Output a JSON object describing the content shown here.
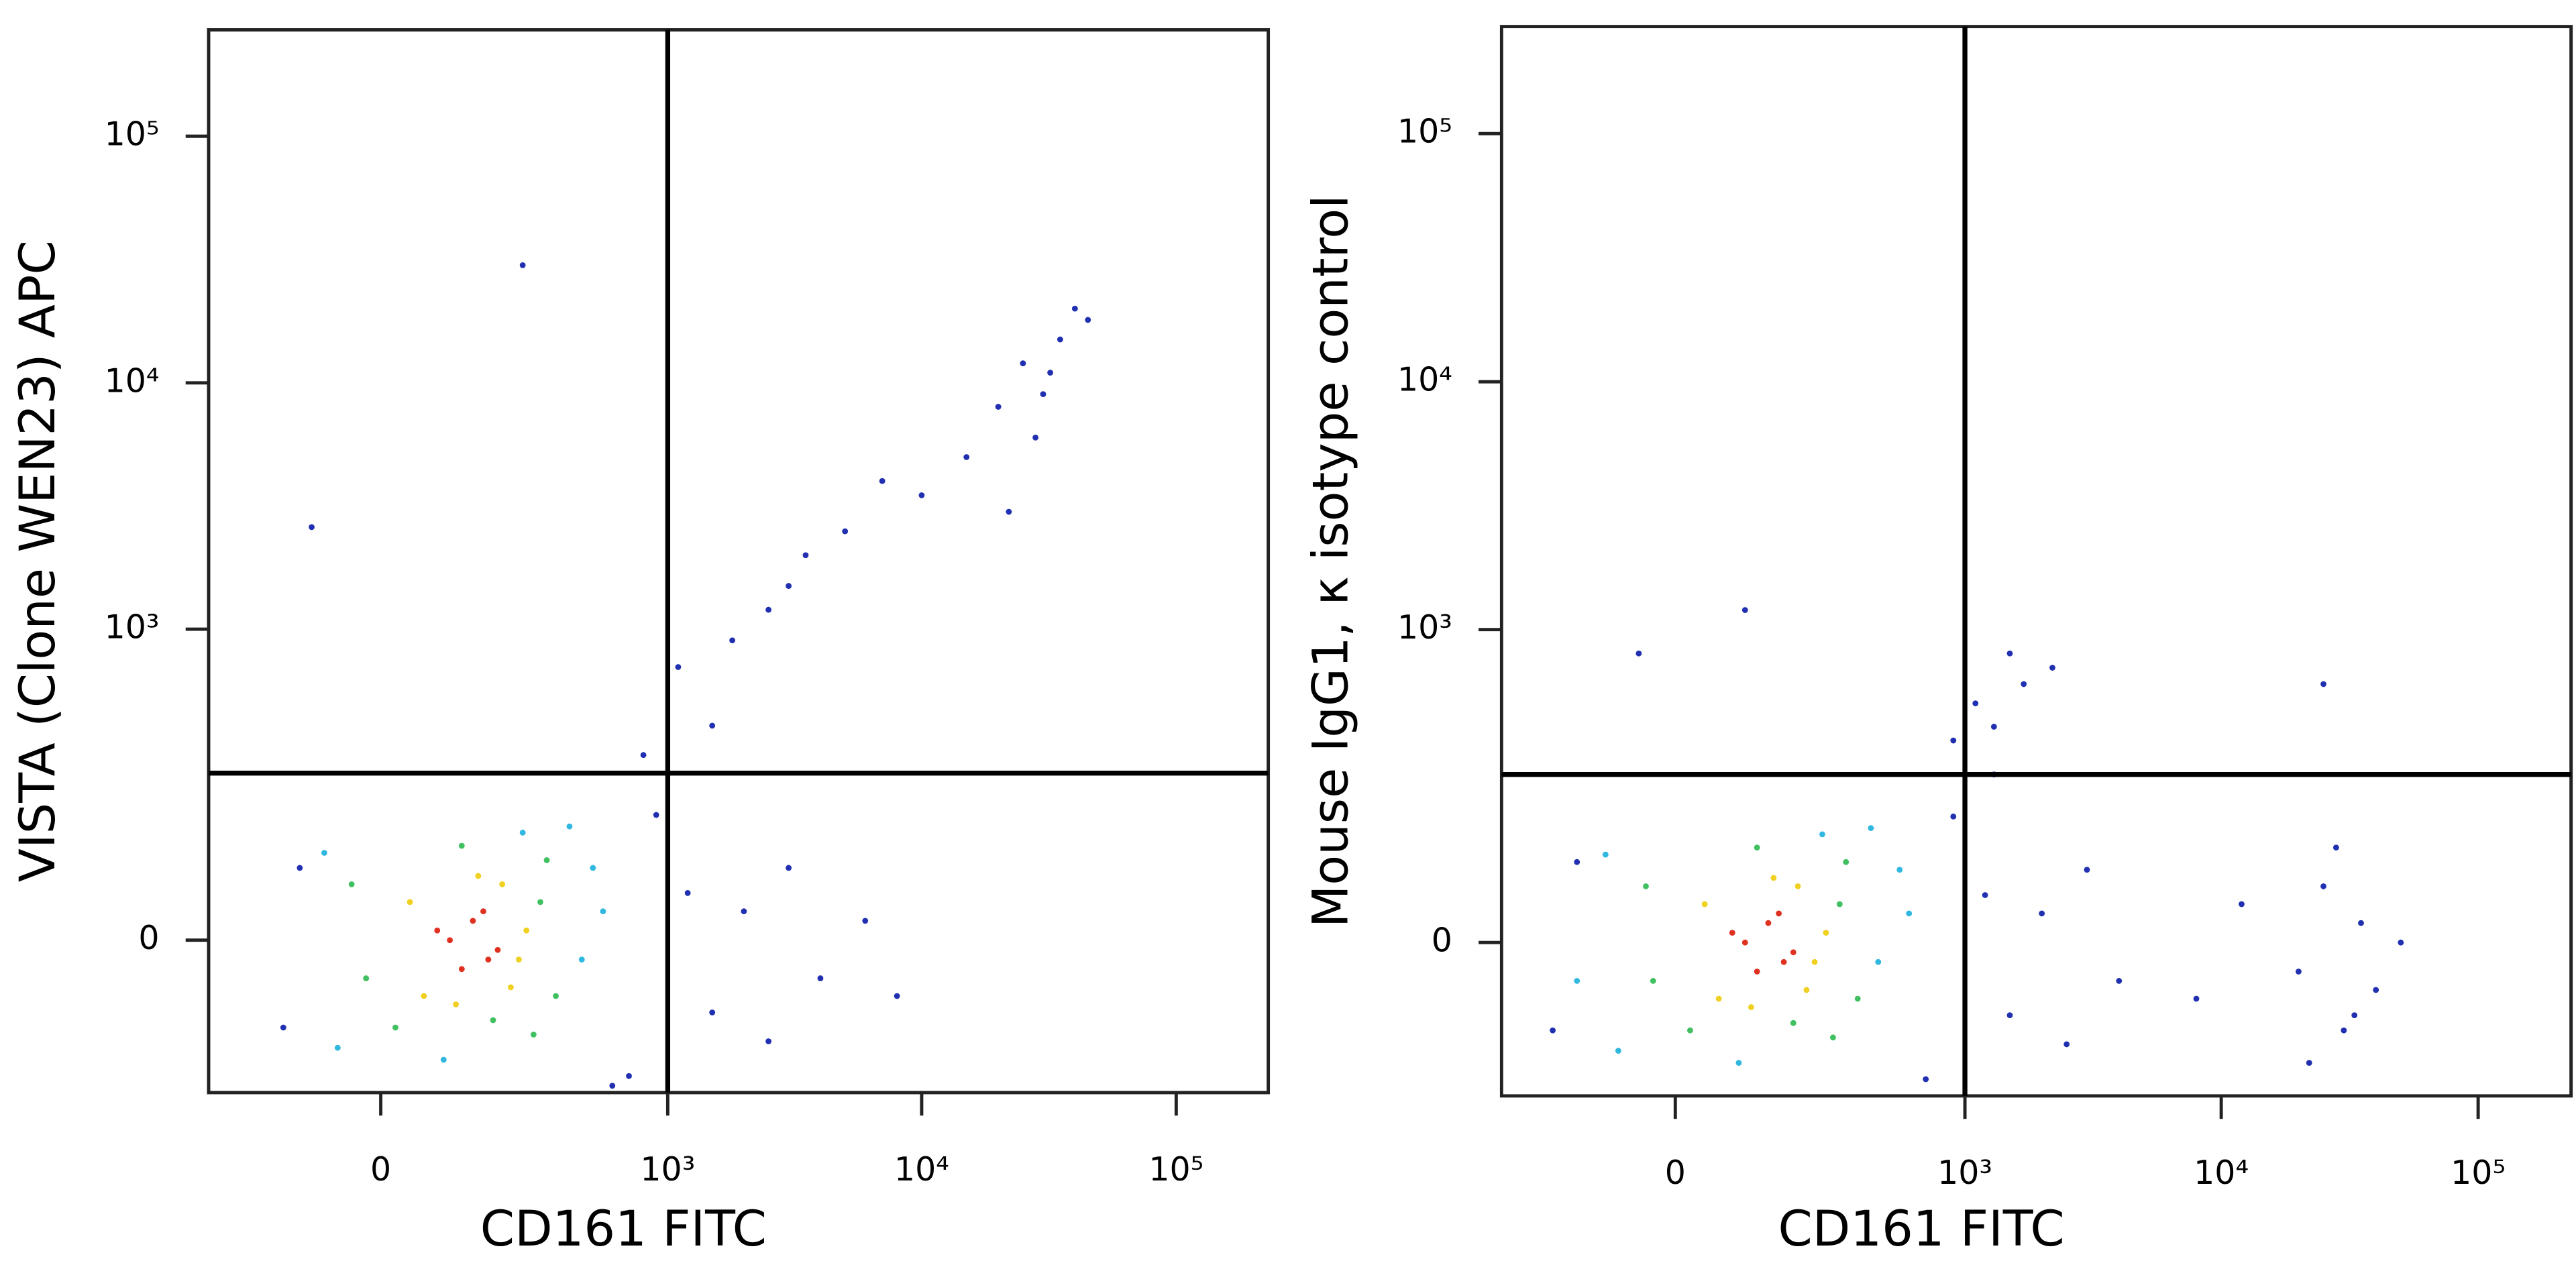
{
  "chart_data": [
    {
      "type": "scatter",
      "xlabel": "CD161 FITC",
      "ylabel": "VISTA (Clone WEN23) APC",
      "xscale": "biexponential",
      "yscale": "biexponential",
      "xlim": [
        -340,
        230000
      ],
      "ylim": [
        -215,
        270000
      ],
      "xticks": [
        0,
        {
          "value": 1000,
          "label": "10³"
        },
        {
          "value": 10000,
          "label": "10⁴"
        },
        {
          "value": 100000,
          "label": "10⁵"
        }
      ],
      "yticks": [
        0,
        {
          "value": 1000,
          "label": "10³"
        },
        {
          "value": 10000,
          "label": "10⁴"
        },
        {
          "value": 100000,
          "label": "10⁵"
        }
      ],
      "gates": {
        "x": 1000,
        "y": 250
      },
      "series": [
        {
          "color": "#2030b0",
          "x": [
            -150,
            -120,
            700,
            900,
            1200,
            1500,
            2000,
            2500,
            3000,
            4000,
            6000,
            8000,
            1100,
            1800,
            2500,
            3500,
            15000,
            20000,
            25000,
            30000,
            35000,
            40000,
            28000,
            22000,
            32000,
            45000,
            5000,
            7000,
            10000,
            3000,
            1500,
            250,
            -100,
            600,
            800
          ],
          "y": [
            -100,
            80,
            -180,
            160,
            50,
            -80,
            30,
            -120,
            80,
            -40,
            20,
            -60,
            700,
            900,
            1200,
            2000,
            5000,
            8000,
            12000,
            9000,
            15000,
            20000,
            6000,
            3000,
            11000,
            18000,
            2500,
            4000,
            3500,
            1500,
            400,
            30000,
            2600,
            -200,
            300
          ]
        },
        {
          "color": "#30b8e0",
          "x": [
            -80,
            450,
            500,
            -60,
            400,
            90,
            250,
            550
          ],
          "y": [
            100,
            -20,
            80,
            -130,
            140,
            -150,
            130,
            30
          ]
        },
        {
          "color": "#40c060",
          "x": [
            -40,
            320,
            350,
            20,
            120,
            280,
            180,
            -20,
            300
          ],
          "y": [
            60,
            90,
            -60,
            -100,
            110,
            -110,
            -90,
            -40,
            40
          ]
        },
        {
          "color": "#f0d020",
          "x": [
            40,
            220,
            260,
            60,
            150,
            200,
            110,
            240
          ],
          "y": [
            40,
            -50,
            10,
            -60,
            70,
            60,
            -70,
            -20
          ]
        },
        {
          "color": "#e03020",
          "x": [
            100,
            140,
            170,
            120,
            160,
            190,
            80
          ],
          "y": [
            0,
            20,
            -20,
            -30,
            30,
            -10,
            10
          ]
        }
      ]
    },
    {
      "type": "scatter",
      "xlabel": "CD161 FITC",
      "ylabel": "Mouse IgG1, κ isotype control",
      "xscale": "biexponential",
      "yscale": "biexponential",
      "xlim": [
        -340,
        230000
      ],
      "ylim": [
        -215,
        270000
      ],
      "xticks": [
        0,
        {
          "value": 1000,
          "label": "10³"
        },
        {
          "value": 10000,
          "label": "10⁴"
        },
        {
          "value": 100000,
          "label": "10⁵"
        }
      ],
      "yticks": [
        0,
        {
          "value": 1000,
          "label": "10³"
        },
        {
          "value": 10000,
          "label": "10⁴"
        },
        {
          "value": 100000,
          "label": "10⁵"
        }
      ],
      "gates": {
        "x": 1000,
        "y": 250
      },
      "series": [
        {
          "color": "#2030b0",
          "x": [
            -200,
            -150,
            700,
            900,
            1200,
            1500,
            2000,
            2500,
            3000,
            4000,
            1300,
            1700,
            2200,
            8000,
            12000,
            20000,
            25000,
            30000,
            35000,
            40000,
            28000,
            50000,
            22000,
            33000,
            900,
            1100,
            1500,
            -50,
            100,
            25000,
            1300
          ],
          "y": [
            -100,
            90,
            -180,
            160,
            50,
            -80,
            30,
            -120,
            80,
            -40,
            400,
            600,
            700,
            -60,
            40,
            -30,
            60,
            -100,
            20,
            -50,
            110,
            0,
            -150,
            -80,
            350,
            500,
            800,
            800,
            1200,
            600,
            250
          ]
        },
        {
          "color": "#30b8e0",
          "x": [
            -100,
            450,
            550,
            -80,
            420,
            90,
            260,
            600,
            -150
          ],
          "y": [
            100,
            -20,
            80,
            -130,
            140,
            -150,
            130,
            30,
            -40
          ]
        },
        {
          "color": "#40c060",
          "x": [
            -40,
            330,
            370,
            20,
            120,
            290,
            190,
            -30,
            310
          ],
          "y": [
            60,
            90,
            -60,
            -100,
            110,
            -110,
            -90,
            -40,
            40
          ]
        },
        {
          "color": "#f0d020",
          "x": [
            40,
            220,
            270,
            60,
            150,
            200,
            110,
            240
          ],
          "y": [
            40,
            -50,
            10,
            -60,
            70,
            60,
            -70,
            -20
          ]
        },
        {
          "color": "#e03020",
          "x": [
            100,
            140,
            170,
            120,
            160,
            190,
            80
          ],
          "y": [
            0,
            20,
            -20,
            -30,
            30,
            -10,
            10
          ]
        }
      ]
    }
  ]
}
